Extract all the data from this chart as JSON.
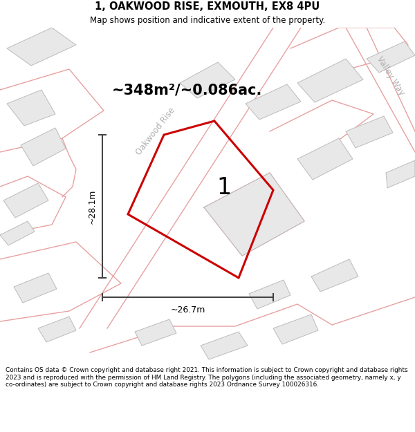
{
  "title_line1": "1, OAKWOOD RISE, EXMOUTH, EX8 4PU",
  "title_line2": "Map shows position and indicative extent of the property.",
  "area_text": "~348m²/~0.086ac.",
  "label_1": "1",
  "dim_vertical": "~28.1m",
  "dim_horizontal": "~26.7m",
  "road_label": "Oakwood Rise",
  "road_label2": "Valley Way",
  "footer_text": "Contains OS data © Crown copyright and database right 2021. This information is subject to Crown copyright and database rights 2023 and is reproduced with the permission of HM Land Registry. The polygons (including the associated geometry, namely x, y co-ordinates) are subject to Crown copyright and database rights 2023 Ordnance Survey 100026316.",
  "red_color": "#cc0000",
  "pink_color": "#e8a0a0",
  "bld_face": "#e8e8e8",
  "bld_edge": "#bbbbbb",
  "road_line_color": "#e8a0a0"
}
